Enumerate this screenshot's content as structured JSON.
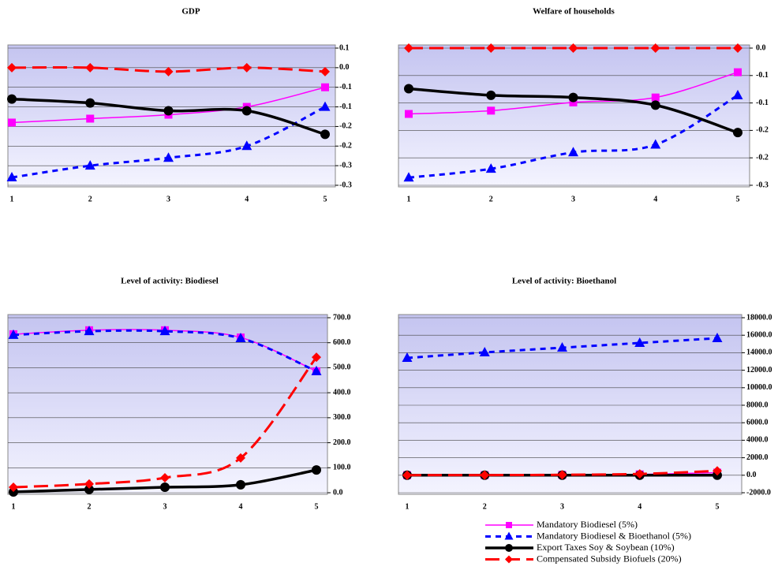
{
  "chart_data": [
    {
      "type": "line",
      "title": "GDP",
      "categories": [
        "1",
        "2",
        "3",
        "4",
        "5"
      ],
      "ylim": [
        -0.3,
        0.05
      ],
      "yticks": [
        {
          "value": 0.05,
          "label": "0.1"
        },
        {
          "value": 0,
          "label": "0.0"
        },
        {
          "value": -0.05,
          "label": "-0.1"
        },
        -0.1,
        {
          "value": -0.15,
          "label": "-0.2"
        },
        -0.2,
        {
          "value": -0.25,
          "label": "-0.3"
        },
        -0.3
      ],
      "grid": true,
      "series": [
        {
          "name": "Mandatory Biodiesel (5%)",
          "color": "#ff00ff",
          "marker": "square",
          "dash": "solid",
          "values": [
            -0.14,
            -0.13,
            -0.12,
            -0.1,
            -0.05
          ]
        },
        {
          "name": "Mandatory Biodiesel & Bioethanol (5%)",
          "color": "#0000ff",
          "marker": "triangle",
          "dash": "short",
          "values": [
            -0.28,
            -0.25,
            -0.23,
            -0.2,
            -0.1
          ]
        },
        {
          "name": "Export Taxes Soy & Soybean (10%)",
          "color": "#000000",
          "marker": "circle",
          "dash": "solid-thick",
          "values": [
            -0.08,
            -0.09,
            -0.11,
            -0.11,
            -0.17
          ]
        },
        {
          "name": "Compensated Subsidy Biofuels (20%)",
          "color": "#ff0000",
          "marker": "diamond",
          "dash": "long",
          "values": [
            0,
            0,
            -0.01,
            0,
            -0.01
          ]
        }
      ]
    },
    {
      "type": "line",
      "title": "Welfare of households",
      "categories": [
        "1",
        "2",
        "3",
        "4",
        "5"
      ],
      "ylim": [
        -0.25,
        0
      ],
      "yticks": [
        {
          "value": 0,
          "label": "0.0"
        },
        {
          "value": -0.05,
          "label": "-0.1"
        },
        -0.1,
        {
          "value": -0.15,
          "label": "-0.2"
        },
        -0.2,
        {
          "value": -0.25,
          "label": "-0.3"
        }
      ],
      "grid": true,
      "series": [
        {
          "color": "#ff00ff",
          "marker": "square",
          "dash": "solid",
          "values": [
            -0.12,
            -0.114,
            -0.099,
            -0.09,
            -0.044
          ]
        },
        {
          "color": "#0000ff",
          "marker": "triangle",
          "dash": "short",
          "values": [
            -0.236,
            -0.22,
            -0.19,
            -0.176,
            -0.086
          ]
        },
        {
          "color": "#000000",
          "marker": "circle",
          "dash": "solid-thick",
          "values": [
            -0.074,
            -0.086,
            -0.09,
            -0.104,
            -0.154
          ]
        },
        {
          "color": "#ff0000",
          "marker": "diamond",
          "dash": "long",
          "values": [
            0,
            0,
            0,
            0,
            0
          ]
        }
      ]
    },
    {
      "type": "line",
      "title": "Level of activity: Biodiesel",
      "categories": [
        "1",
        "2",
        "3",
        "4",
        "5"
      ],
      "ylim": [
        0,
        700
      ],
      "yticks": [
        {
          "value": 700,
          "label": "700.0"
        },
        {
          "value": 600,
          "label": "600.0"
        },
        {
          "value": 500,
          "label": "500.0"
        },
        {
          "value": 400,
          "label": "400.0"
        },
        {
          "value": 300,
          "label": "300.0"
        },
        {
          "value": 200,
          "label": "200.0"
        },
        {
          "value": 100,
          "label": "100.0"
        },
        {
          "value": 0,
          "label": "0.0"
        }
      ],
      "grid": true,
      "series": [
        {
          "color": "#ff00ff",
          "marker": "square",
          "dash": "solid",
          "values": [
            634,
            650,
            650,
            621,
            486
          ]
        },
        {
          "color": "#0000ff",
          "marker": "triangle",
          "dash": "short",
          "values": [
            631,
            646,
            646,
            618,
            486
          ]
        },
        {
          "color": "#000000",
          "marker": "circle",
          "dash": "solid-thick",
          "values": [
            3,
            13,
            22,
            32,
            91
          ]
        },
        {
          "color": "#ff0000",
          "marker": "diamond",
          "dash": "long",
          "values": [
            22,
            35,
            60,
            139,
            542
          ]
        }
      ]
    },
    {
      "type": "line",
      "title": "Level of activity: Bioethanol",
      "categories": [
        "1",
        "2",
        "3",
        "4",
        "5"
      ],
      "ylim": [
        -2000,
        18000
      ],
      "yticks": [
        {
          "value": 18000,
          "label": "18000.0"
        },
        {
          "value": 16000,
          "label": "16000.0"
        },
        {
          "value": 14000,
          "label": "14000.0"
        },
        {
          "value": 12000,
          "label": "12000.0"
        },
        {
          "value": 10000,
          "label": "10000.0"
        },
        {
          "value": 8000,
          "label": "8000.0"
        },
        {
          "value": 6000,
          "label": "6000.0"
        },
        {
          "value": 4000,
          "label": "4000.0"
        },
        {
          "value": 2000,
          "label": "2000.0"
        },
        {
          "value": 0,
          "label": "0.0"
        },
        {
          "value": -2000,
          "label": "-2000.0"
        }
      ],
      "grid": true,
      "series": [
        {
          "color": "#ff00ff",
          "marker": "square",
          "dash": "solid",
          "values": [
            10,
            20,
            40,
            100,
            300
          ]
        },
        {
          "color": "#0000ff",
          "marker": "triangle",
          "dash": "short",
          "values": [
            13405,
            14036,
            14576,
            15117,
            15658
          ]
        },
        {
          "color": "#000000",
          "marker": "circle",
          "dash": "solid-thick",
          "values": [
            0,
            0,
            0,
            0,
            0
          ]
        },
        {
          "color": "#ff0000",
          "marker": "diamond",
          "dash": "long",
          "values": [
            10,
            20,
            50,
            150,
            500
          ]
        }
      ]
    }
  ]
}
